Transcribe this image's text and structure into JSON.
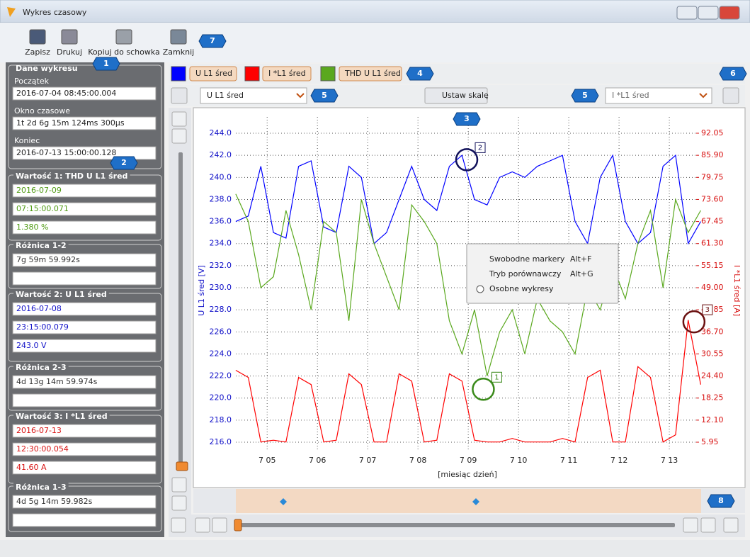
{
  "window": {
    "title": "Wykres czasowy"
  },
  "toolbar": [
    "Zapisz",
    "Drukuj",
    "Kopiuj do schowka",
    "Zamknij"
  ],
  "callouts": [
    "1",
    "2",
    "3",
    "4",
    "5",
    "5",
    "6",
    "7",
    "8"
  ],
  "panel": {
    "title": "Dane wykresu",
    "fields": [
      {
        "label": "Początek",
        "value": "2016-07-04 08:45:00.004"
      },
      {
        "label": "Okno czasowe",
        "value": "1t 2d 6g 15m 124ms 300µs"
      },
      {
        "label": "Koniec",
        "value": "2016-07-13 15:00:00.128"
      }
    ],
    "sections": [
      {
        "title": "Wartość 1: THD U L1 śred",
        "color": "#4f9a12",
        "rows": [
          "2016-07-09",
          "07:15:00.071",
          "1.380 %"
        ]
      },
      {
        "title": "Różnica 1-2",
        "color": "#333333",
        "rows": [
          "7g 59m 59.992s"
        ]
      },
      {
        "title": "Wartość 2: U L1 śred",
        "color": "#1010c8",
        "rows": [
          "2016-07-08",
          "23:15:00.079",
          "243.0 V"
        ]
      },
      {
        "title": "Różnica 2-3",
        "color": "#333333",
        "rows": [
          "4d 13g 14m 59.974s"
        ]
      },
      {
        "title": "Wartość 3: I *L1 śred",
        "color": "#d81010",
        "rows": [
          "2016-07-13",
          "12:30:00.054",
          "41.60 A"
        ]
      },
      {
        "title": "Różnica 1-3",
        "color": "#333333",
        "rows": [
          "4d 5g 14m 59.982s"
        ]
      }
    ]
  },
  "selectors": {
    "left": "U L1 śred",
    "button": "Ustaw skalę",
    "right": "I *L1 śred"
  },
  "context_menu": [
    {
      "label": "Swobodne markery",
      "shortcut": "Alt+F"
    },
    {
      "label": "Tryb porównawczy",
      "shortcut": "Alt+G"
    },
    {
      "label": "Osobne wykresy"
    }
  ],
  "chart": {
    "type": "line",
    "ylabel": "U L1 śred [V]",
    "y2label": "I *L1 śred [A]",
    "xlabel": "[miesiąc dzień]",
    "grid": true,
    "xlim": [
      3.56,
      14.45
    ],
    "xticks": [
      {
        "value": 5,
        "label": "7 05"
      },
      {
        "value": 6,
        "label": "7 06"
      },
      {
        "value": 7,
        "label": "7 07"
      },
      {
        "value": 8,
        "label": "7 08"
      },
      {
        "value": 9,
        "label": "7 09"
      },
      {
        "value": 10,
        "label": "7 10"
      },
      {
        "value": 11,
        "label": "7 11"
      },
      {
        "value": 12,
        "label": "7 12"
      },
      {
        "value": 13,
        "label": "7 13"
      }
    ],
    "ylim": [
      213.69,
      246.25
    ],
    "yticks": [
      {
        "value": 216,
        "label": "216.0"
      },
      {
        "value": 218,
        "label": "218.0"
      },
      {
        "value": 220,
        "label": "220.0"
      },
      {
        "value": 222,
        "label": "222.0"
      },
      {
        "value": 224,
        "label": "224.0"
      },
      {
        "value": 226,
        "label": "226.0"
      },
      {
        "value": 228,
        "label": "228.0"
      },
      {
        "value": 230,
        "label": "230.0"
      },
      {
        "value": 232,
        "label": "232.0"
      },
      {
        "value": 234,
        "label": "234.0"
      },
      {
        "value": 236,
        "label": "236.0"
      },
      {
        "value": 238,
        "label": "238.0"
      },
      {
        "value": 240,
        "label": "240.0"
      },
      {
        "value": 242,
        "label": "242.0"
      },
      {
        "value": 244,
        "label": "244.0"
      }
    ],
    "y2lim": [
      -1.16,
      98.96
    ],
    "y2ticks": [
      5.95,
      {
        "value": 12.1,
        "label": "12.10"
      },
      18.25,
      {
        "value": 24.4,
        "label": "24.40"
      },
      30.55,
      {
        "value": 36.7,
        "label": "36.70"
      },
      42.85,
      {
        "value": 49,
        "label": "49.00"
      },
      55.15,
      {
        "value": 61.3,
        "label": "61.30"
      },
      67.45,
      {
        "value": 73.6,
        "label": "73.60"
      },
      79.75,
      {
        "value": 85.9,
        "label": "85.90"
      },
      92.05
    ],
    "x": [
      4.375,
      4.625,
      4.875,
      5.125,
      5.375,
      5.625,
      5.875,
      6.125,
      6.375,
      6.625,
      6.875,
      7.125,
      7.375,
      7.625,
      7.875,
      8.125,
      8.375,
      8.625,
      8.875,
      9.125,
      9.375,
      9.625,
      9.875,
      10.125,
      10.375,
      10.625,
      10.875,
      11.125,
      11.375,
      11.625,
      11.875,
      12.125,
      12.375,
      12.625,
      12.875,
      13.125,
      13.375,
      13.625
    ],
    "series": [
      {
        "name": "U L1 śred",
        "color": "#0000ff",
        "axis": "y",
        "values": [
          236,
          236.5,
          241,
          235,
          234.5,
          241,
          241.5,
          235.5,
          235,
          241,
          240,
          234,
          235,
          238,
          241,
          238,
          237,
          241,
          242,
          238,
          237.5,
          240,
          240.5,
          240,
          241,
          241.5,
          242,
          236,
          234,
          240,
          242,
          236,
          234,
          235,
          241,
          242,
          234,
          236
        ]
      },
      {
        "name": "I *L1 śred",
        "color": "#ff0000",
        "axis": "y2",
        "values": [
          26,
          24,
          6,
          6.5,
          6,
          24,
          22,
          6,
          6.5,
          25,
          22,
          6,
          6,
          25,
          23,
          6,
          6.5,
          25,
          23,
          6.5,
          6,
          6,
          7,
          6,
          6,
          6,
          7,
          6,
          24,
          26,
          6,
          6,
          27,
          24,
          6,
          8,
          40,
          22
        ]
      },
      {
        "name": "THD U L1 śred",
        "color": "#5aa81e",
        "axis": "y",
        "values": [
          238.5,
          236,
          230,
          231,
          237,
          233,
          228,
          236,
          235,
          227,
          238,
          234,
          231,
          228,
          237.5,
          236,
          234,
          227,
          224,
          228,
          222,
          226,
          228,
          224,
          229,
          227,
          226,
          224,
          230,
          228,
          232,
          229,
          234,
          237,
          230,
          238,
          235,
          237
        ]
      }
    ],
    "markers": [
      {
        "label": "1",
        "x": 9.3,
        "y": 220.8,
        "axis": "y",
        "color": "#3a8a1a"
      },
      {
        "label": "2",
        "x": 8.97,
        "y": 241.6,
        "axis": "y",
        "color": "#10105a"
      },
      {
        "label": "3",
        "x": 13.49,
        "y": 39.5,
        "axis": "y2",
        "color": "#6a1010"
      }
    ]
  }
}
